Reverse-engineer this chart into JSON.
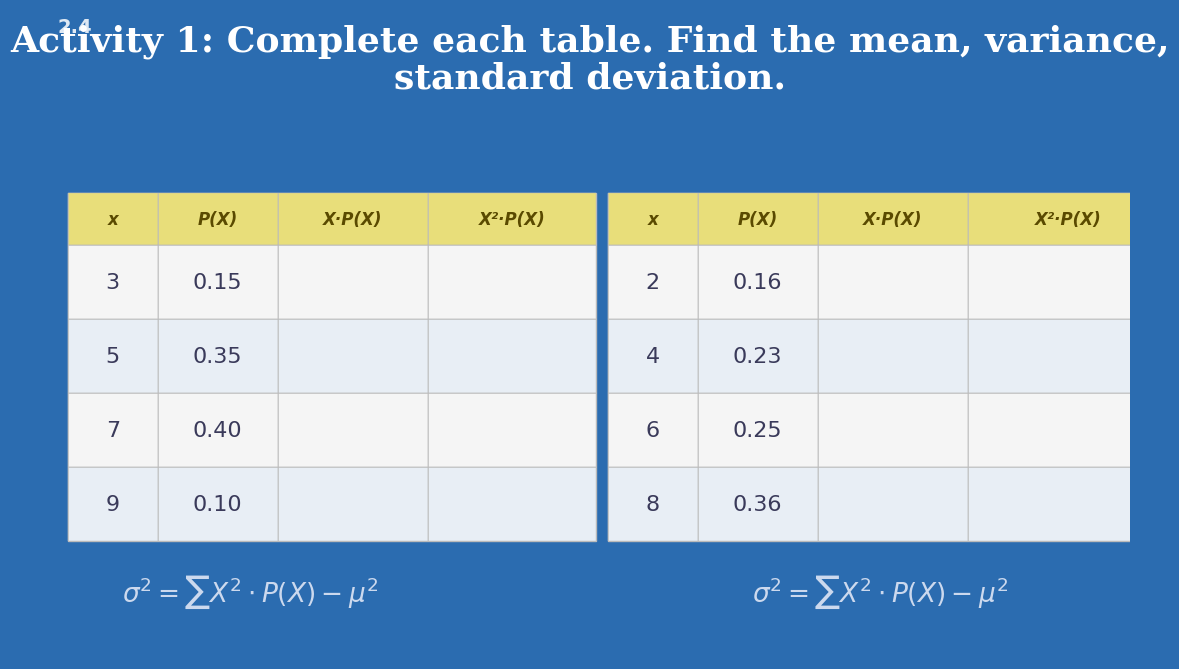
{
  "bg_color": "#2b6cb0",
  "title_line1": "Activity 1: Complete each table. Find the mean, variance,",
  "title_line2": "standard deviation.",
  "title_color": "white",
  "title_fontsize": 26,
  "page_label": "2.4",
  "table1": {
    "headers": [
      "x",
      "P(X)",
      "X·P(X)",
      "X²·P(X)"
    ],
    "rows": [
      [
        "3",
        "0.15",
        "",
        ""
      ],
      [
        "5",
        "0.35",
        "",
        ""
      ],
      [
        "7",
        "0.40",
        "",
        ""
      ],
      [
        "9",
        "0.10",
        "",
        ""
      ]
    ]
  },
  "table2": {
    "headers": [
      "x",
      "P(X)",
      "X·P(X)",
      "X²·P(X)"
    ],
    "rows": [
      [
        "2",
        "0.16",
        "",
        ""
      ],
      [
        "4",
        "0.23",
        "",
        ""
      ],
      [
        "6",
        "0.25",
        "",
        ""
      ],
      [
        "8",
        "0.36",
        "",
        ""
      ]
    ]
  },
  "header_bg": "#e8de7a",
  "header_text_color": "#5a4a00",
  "row_bg_even": "#f5f5f5",
  "row_bg_odd": "#e8eef5",
  "cell_text_color": "#3a3a5a",
  "table_border_color": "#bbbbbb",
  "formula_color": "#ccd9ee",
  "formula_fontsize": 19
}
